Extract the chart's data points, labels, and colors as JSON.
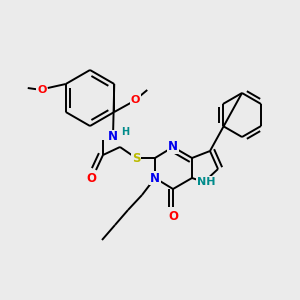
{
  "bg_color": "#ebebeb",
  "bond_color": "#000000",
  "atom_colors": {
    "N": "#0000ee",
    "O": "#ff0000",
    "S": "#bbbb00",
    "NH": "#008b8b",
    "C": "#000000"
  },
  "figsize": [
    3.0,
    3.0
  ],
  "dpi": 100
}
